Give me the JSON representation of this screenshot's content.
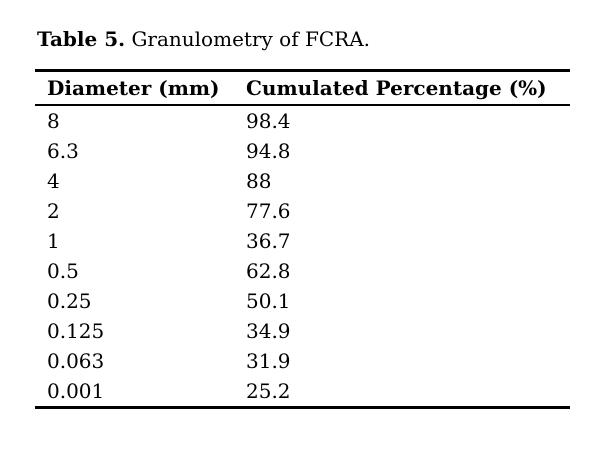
{
  "page": {
    "background_color": "#ffffff",
    "text_color": "#000000",
    "rule_color": "#000000"
  },
  "caption": {
    "label": "Table 5.",
    "text": "Granulometry of FCRA."
  },
  "table": {
    "columns": [
      "Diameter (mm)",
      "Cumulated Percentage (%)"
    ],
    "rows": [
      [
        "8",
        "98.4"
      ],
      [
        "6.3",
        "94.8"
      ],
      [
        "4",
        "88"
      ],
      [
        "2",
        "77.6"
      ],
      [
        "1",
        "36.7"
      ],
      [
        "0.5",
        "62.8"
      ],
      [
        "0.25",
        "50.1"
      ],
      [
        "0.125",
        "34.9"
      ],
      [
        "0.063",
        "31.9"
      ],
      [
        "0.001",
        "25.2"
      ]
    ]
  },
  "chart_data": {
    "type": "table",
    "title": "Table 5. Granulometry of FCRA.",
    "columns": [
      "Diameter (mm)",
      "Cumulated Percentage (%)"
    ],
    "rows": [
      [
        8,
        98.4
      ],
      [
        6.3,
        94.8
      ],
      [
        4,
        88
      ],
      [
        2,
        77.6
      ],
      [
        1,
        36.7
      ],
      [
        0.5,
        62.8
      ],
      [
        0.25,
        50.1
      ],
      [
        0.125,
        34.9
      ],
      [
        0.063,
        31.9
      ],
      [
        0.001,
        25.2
      ]
    ]
  }
}
